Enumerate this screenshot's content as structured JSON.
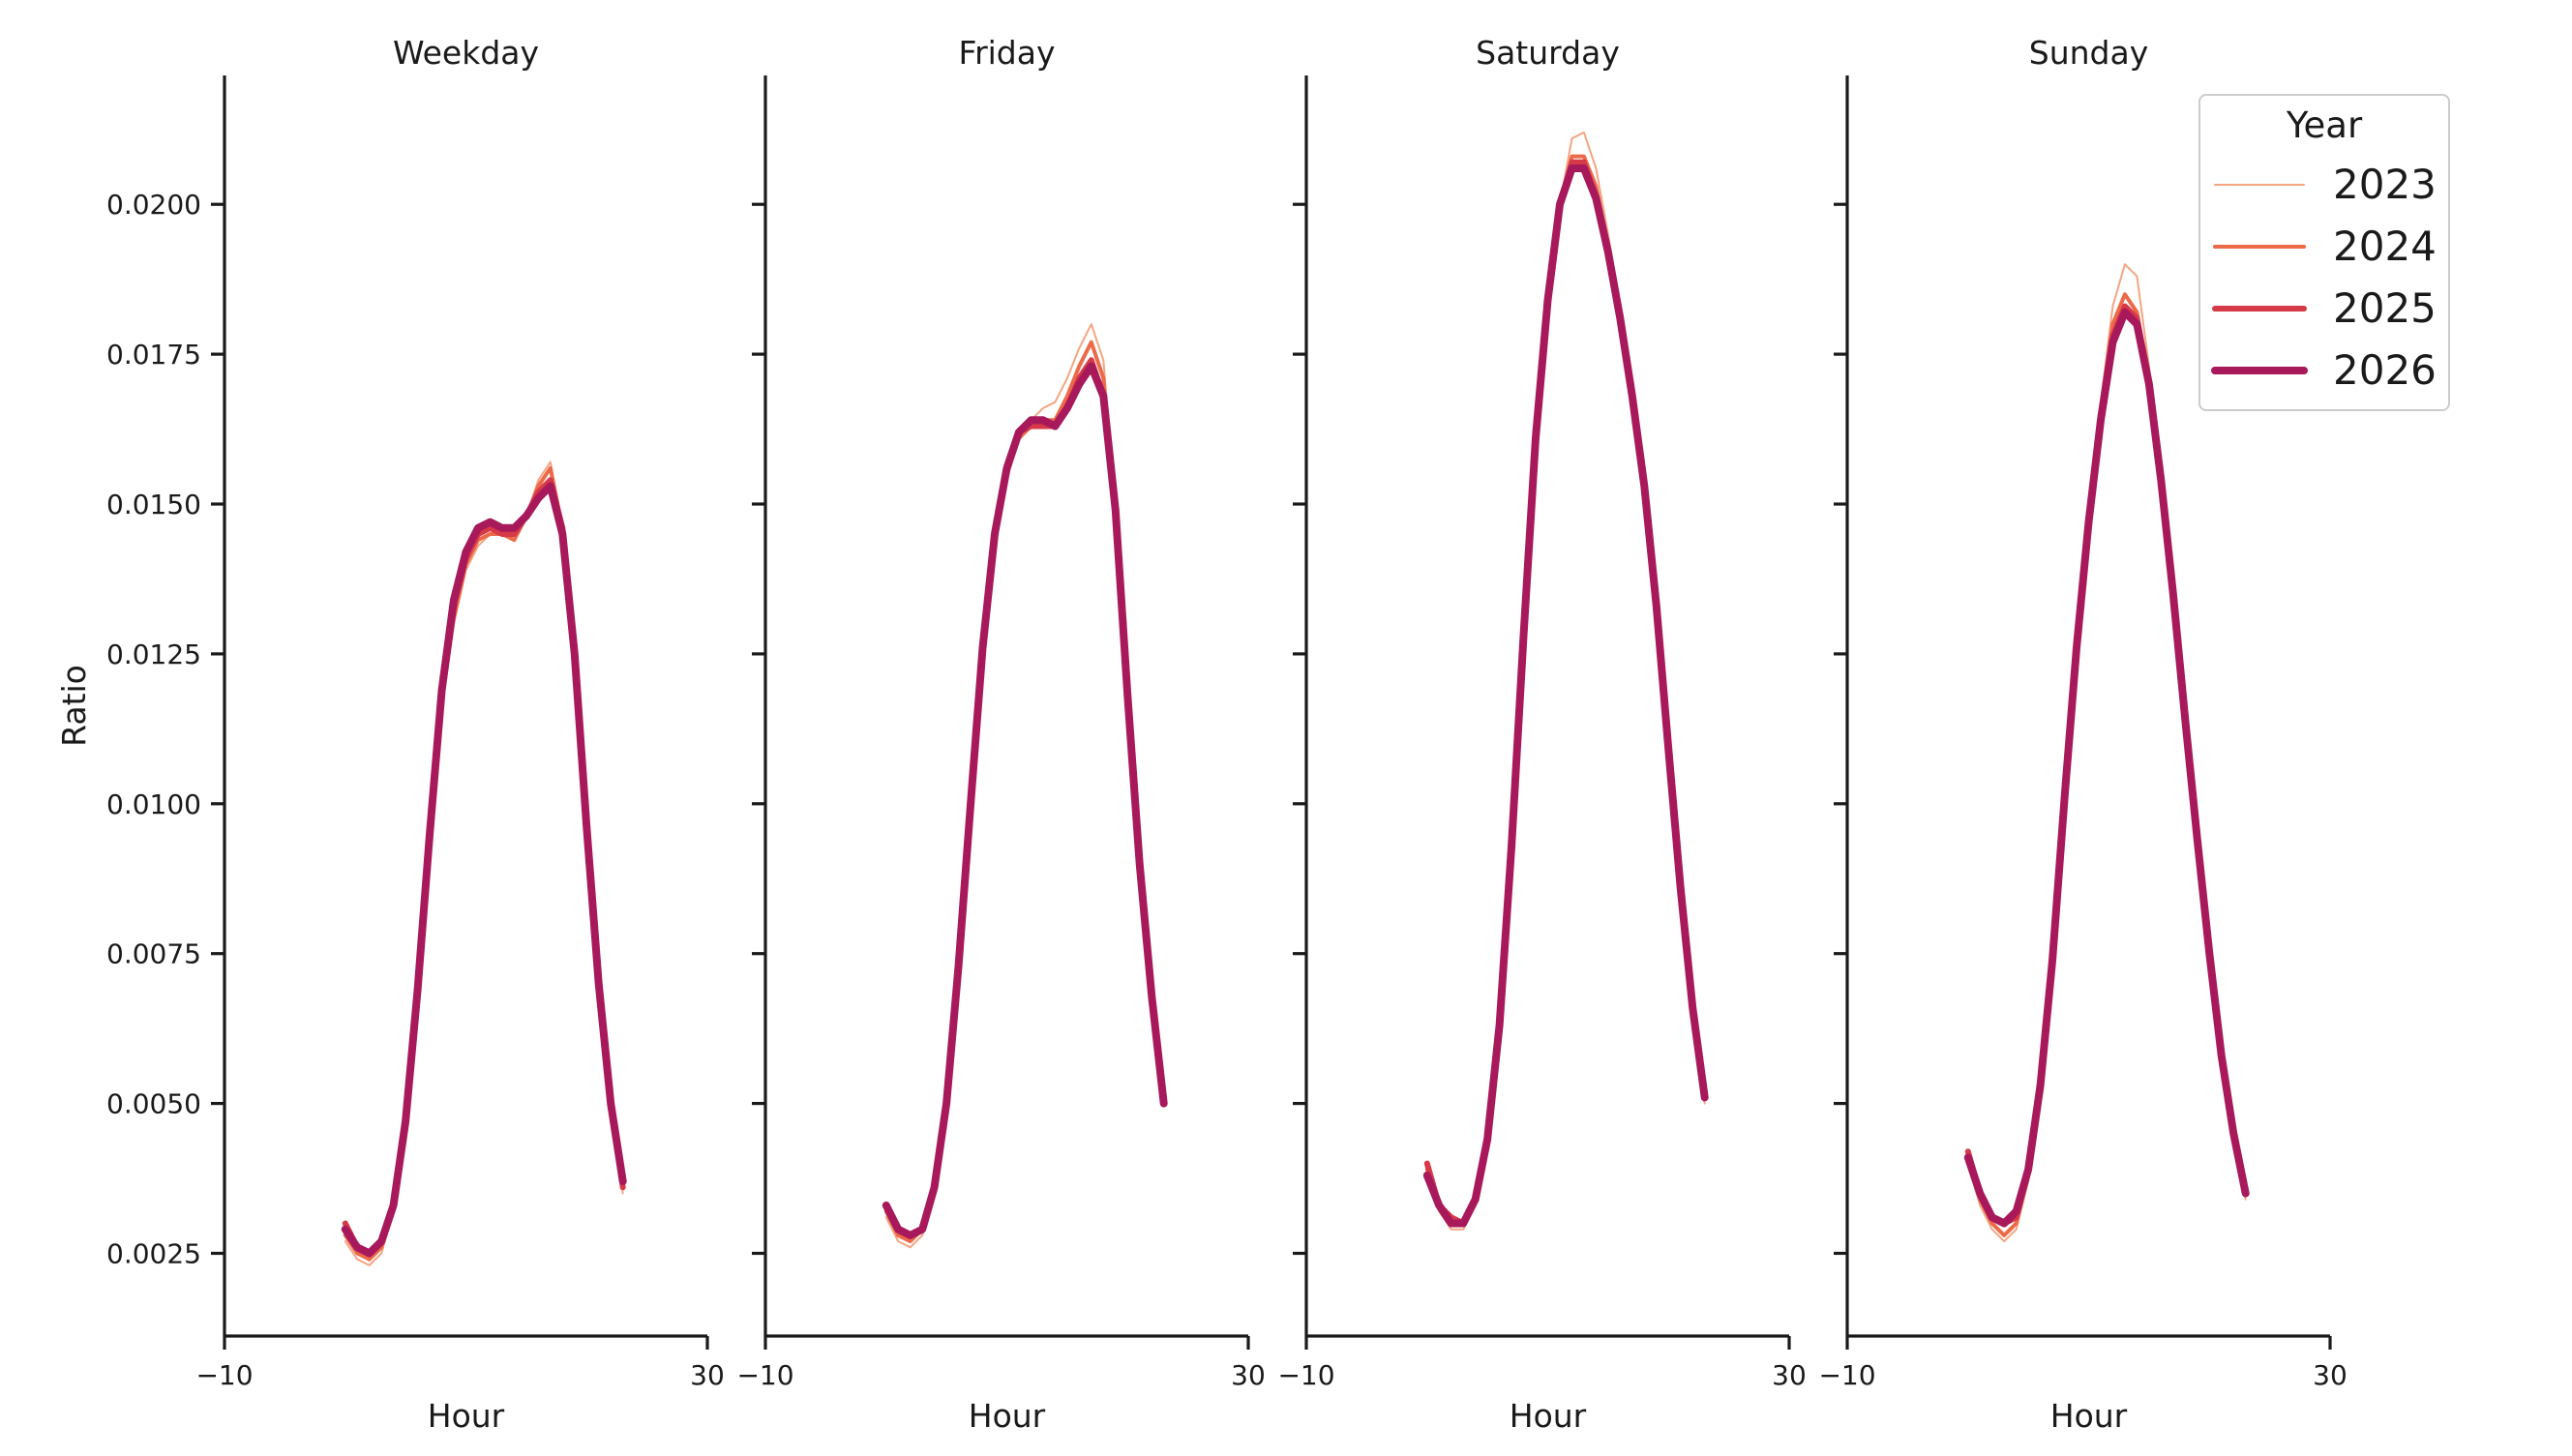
{
  "chart_data": {
    "type": "line",
    "ylabel": "Ratio",
    "xlabel": "Hour",
    "xlim": [
      -10,
      30
    ],
    "ylim": [
      0.00112,
      0.02215
    ],
    "x_ticks": [
      -10,
      30
    ],
    "x_tick_labels": [
      "−10",
      "30"
    ],
    "y_ticks": [
      0.0025,
      0.005,
      0.0075,
      0.01,
      0.0125,
      0.015,
      0.0175,
      0.02
    ],
    "y_tick_labels": [
      "0.0025",
      "0.0050",
      "0.0075",
      "0.0100",
      "0.0125",
      "0.0150",
      "0.0175",
      "0.0200"
    ],
    "grid": false,
    "legend": {
      "title": "Year",
      "placement": "top-right",
      "entries": [
        "2023",
        "2024",
        "2025",
        "2026"
      ]
    },
    "colors": {
      "2023": "#f4a582",
      "2024": "#ec6a48",
      "2025": "#d63a48",
      "2026": "#a8195c"
    },
    "panels": [
      {
        "title": "Weekday",
        "x": [
          0,
          1,
          2,
          3,
          4,
          5,
          6,
          7,
          8,
          9,
          10,
          11,
          12,
          13,
          14,
          15,
          16,
          17,
          18,
          19,
          20,
          21,
          22,
          23
        ],
        "series": [
          {
            "name": "2023",
            "values": [
              0.0027,
              0.0024,
              0.0023,
              0.0025,
              0.0032,
              0.0046,
              0.0068,
              0.0094,
              0.0116,
              0.013,
              0.0139,
              0.0143,
              0.0145,
              0.0145,
              0.0144,
              0.0148,
              0.0154,
              0.0157,
              0.0146,
              0.0125,
              0.0096,
              0.0069,
              0.0049,
              0.0035
            ]
          },
          {
            "name": "2024",
            "values": [
              0.0028,
              0.0025,
              0.0024,
              0.0026,
              0.0033,
              0.0047,
              0.0068,
              0.0095,
              0.0117,
              0.0131,
              0.014,
              0.0144,
              0.0145,
              0.0145,
              0.0144,
              0.0148,
              0.0153,
              0.0156,
              0.0146,
              0.0125,
              0.0096,
              0.0069,
              0.0049,
              0.0036
            ]
          },
          {
            "name": "2025",
            "values": [
              0.003,
              0.0026,
              0.0025,
              0.0027,
              0.0033,
              0.0047,
              0.0069,
              0.0095,
              0.0118,
              0.0133,
              0.0141,
              0.0145,
              0.0146,
              0.0145,
              0.0145,
              0.0148,
              0.0152,
              0.0154,
              0.0146,
              0.0125,
              0.0096,
              0.007,
              0.005,
              0.0036
            ]
          },
          {
            "name": "2026",
            "values": [
              0.0029,
              0.0026,
              0.0025,
              0.0027,
              0.0033,
              0.0047,
              0.0069,
              0.0095,
              0.0119,
              0.0134,
              0.0142,
              0.0146,
              0.0147,
              0.0146,
              0.0146,
              0.0148,
              0.0151,
              0.0153,
              0.0145,
              0.0125,
              0.0096,
              0.007,
              0.005,
              0.0037
            ]
          }
        ]
      },
      {
        "title": "Friday",
        "x": [
          0,
          1,
          2,
          3,
          4,
          5,
          6,
          7,
          8,
          9,
          10,
          11,
          12,
          13,
          14,
          15,
          16,
          17,
          18,
          19,
          20,
          21,
          22,
          23
        ],
        "series": [
          {
            "name": "2023",
            "values": [
              0.0031,
              0.0027,
              0.0026,
              0.0028,
              0.0035,
              0.0049,
              0.0072,
              0.0099,
              0.0124,
              0.0143,
              0.0154,
              0.0161,
              0.0164,
              0.0166,
              0.0167,
              0.0171,
              0.0176,
              0.018,
              0.0174,
              0.0149,
              0.0118,
              0.0089,
              0.0068,
              0.005
            ]
          },
          {
            "name": "2024",
            "values": [
              0.0032,
              0.0028,
              0.0027,
              0.0029,
              0.0035,
              0.005,
              0.0073,
              0.01,
              0.0125,
              0.0144,
              0.0155,
              0.0161,
              0.0163,
              0.0164,
              0.0164,
              0.0168,
              0.0173,
              0.0177,
              0.0171,
              0.0149,
              0.0118,
              0.009,
              0.0068,
              0.005
            ]
          },
          {
            "name": "2025",
            "values": [
              0.0033,
              0.0029,
              0.0028,
              0.0029,
              0.0036,
              0.005,
              0.0073,
              0.01,
              0.0126,
              0.0145,
              0.0156,
              0.0162,
              0.0163,
              0.0163,
              0.0163,
              0.0166,
              0.0171,
              0.0174,
              0.0168,
              0.0149,
              0.0118,
              0.009,
              0.0068,
              0.005
            ]
          },
          {
            "name": "2026",
            "values": [
              0.0033,
              0.0029,
              0.0028,
              0.0029,
              0.0036,
              0.005,
              0.0073,
              0.01,
              0.0126,
              0.0145,
              0.0156,
              0.0162,
              0.0164,
              0.0164,
              0.0163,
              0.0166,
              0.017,
              0.0173,
              0.0168,
              0.0149,
              0.0118,
              0.009,
              0.0068,
              0.005
            ]
          }
        ]
      },
      {
        "title": "Saturday",
        "x": [
          0,
          1,
          2,
          3,
          4,
          5,
          6,
          7,
          8,
          9,
          10,
          11,
          12,
          13,
          14,
          15,
          16,
          17,
          18,
          19,
          20,
          21,
          22,
          23
        ],
        "series": [
          {
            "name": "2023",
            "values": [
              0.0038,
              0.0032,
              0.0029,
              0.0029,
              0.0033,
              0.0043,
              0.0062,
              0.0092,
              0.0128,
              0.0161,
              0.0184,
              0.02,
              0.0211,
              0.0212,
              0.0206,
              0.0195,
              0.0183,
              0.0169,
              0.0154,
              0.0133,
              0.0109,
              0.0085,
              0.0066,
              0.005
            ]
          },
          {
            "name": "2024",
            "values": [
              0.0039,
              0.0033,
              0.003,
              0.003,
              0.0034,
              0.0044,
              0.0063,
              0.0093,
              0.0128,
              0.0161,
              0.0184,
              0.02,
              0.0208,
              0.0208,
              0.0203,
              0.0193,
              0.0181,
              0.0168,
              0.0153,
              0.0133,
              0.0109,
              0.0086,
              0.0066,
              0.0051
            ]
          },
          {
            "name": "2025",
            "values": [
              0.004,
              0.0033,
              0.0031,
              0.003,
              0.0034,
              0.0044,
              0.0063,
              0.0093,
              0.0128,
              0.0161,
              0.0184,
              0.02,
              0.0207,
              0.0207,
              0.0201,
              0.0192,
              0.0181,
              0.0168,
              0.0153,
              0.0133,
              0.0109,
              0.0086,
              0.0066,
              0.0051
            ]
          },
          {
            "name": "2026",
            "values": [
              0.0038,
              0.0033,
              0.003,
              0.003,
              0.0034,
              0.0044,
              0.0063,
              0.0093,
              0.0128,
              0.0161,
              0.0184,
              0.02,
              0.0206,
              0.0206,
              0.0201,
              0.0192,
              0.0181,
              0.0168,
              0.0153,
              0.0133,
              0.0109,
              0.0086,
              0.0066,
              0.0051
            ]
          }
        ]
      },
      {
        "title": "Sunday",
        "x": [
          0,
          1,
          2,
          3,
          4,
          5,
          6,
          7,
          8,
          9,
          10,
          11,
          12,
          13,
          14,
          15,
          16,
          17,
          18,
          19,
          20,
          21,
          22,
          23
        ],
        "series": [
          {
            "name": "2023",
            "values": [
              0.004,
              0.0033,
              0.0029,
              0.0027,
              0.0029,
              0.0037,
              0.0052,
              0.0074,
              0.0101,
              0.0127,
              0.0149,
              0.0167,
              0.0183,
              0.019,
              0.0188,
              0.0173,
              0.0155,
              0.0135,
              0.0114,
              0.0093,
              0.0074,
              0.0057,
              0.0044,
              0.0034
            ]
          },
          {
            "name": "2024",
            "values": [
              0.0041,
              0.0034,
              0.003,
              0.0028,
              0.003,
              0.0038,
              0.0052,
              0.0074,
              0.0101,
              0.0127,
              0.0148,
              0.0166,
              0.018,
              0.0185,
              0.0182,
              0.017,
              0.0154,
              0.0135,
              0.0114,
              0.0094,
              0.0075,
              0.0058,
              0.0045,
              0.0035
            ]
          },
          {
            "name": "2025",
            "values": [
              0.0042,
              0.0035,
              0.0031,
              0.003,
              0.0031,
              0.0039,
              0.0053,
              0.0074,
              0.0101,
              0.0126,
              0.0147,
              0.0165,
              0.0178,
              0.0183,
              0.0181,
              0.017,
              0.0154,
              0.0135,
              0.0114,
              0.0094,
              0.0075,
              0.0058,
              0.0045,
              0.0035
            ]
          },
          {
            "name": "2026",
            "values": [
              0.0041,
              0.0035,
              0.0031,
              0.003,
              0.0032,
              0.0039,
              0.0053,
              0.0074,
              0.0101,
              0.0126,
              0.0147,
              0.0164,
              0.0177,
              0.0182,
              0.018,
              0.017,
              0.0154,
              0.0135,
              0.0114,
              0.0094,
              0.0075,
              0.0058,
              0.0045,
              0.0035
            ]
          }
        ]
      }
    ]
  }
}
